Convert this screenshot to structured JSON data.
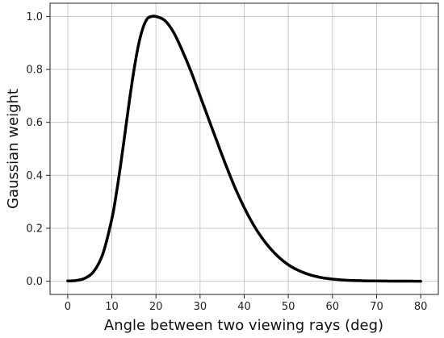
{
  "chart_data": {
    "type": "line",
    "xlabel": "Angle between two viewing rays (deg)",
    "ylabel": "Gaussian weight",
    "xlim": [
      -4,
      84
    ],
    "ylim": [
      -0.05,
      1.05
    ],
    "xticks": [
      0,
      10,
      20,
      30,
      40,
      50,
      60,
      70,
      80
    ],
    "xtick_labels": [
      "0",
      "10",
      "20",
      "30",
      "40",
      "50",
      "60",
      "70",
      "80"
    ],
    "yticks": [
      0.0,
      0.2,
      0.4,
      0.6,
      0.8,
      1.0
    ],
    "ytick_labels": [
      "0.0",
      "0.2",
      "0.4",
      "0.6",
      "0.8",
      "1.0"
    ],
    "grid": true,
    "series": [
      {
        "color": "#000000",
        "x": [
          0,
          2,
          4,
          6,
          8,
          10,
          11,
          12,
          13,
          14,
          15,
          16,
          17,
          18,
          19,
          20,
          22,
          24,
          26,
          28,
          30,
          32,
          34,
          36,
          38,
          40,
          42,
          44,
          46,
          48,
          50,
          52,
          54,
          56,
          58,
          60,
          62,
          64,
          66,
          68,
          70,
          72,
          74,
          76,
          78,
          80
        ],
        "y": [
          0.001,
          0.003,
          0.012,
          0.039,
          0.105,
          0.235,
          0.329,
          0.44,
          0.561,
          0.684,
          0.796,
          0.889,
          0.954,
          0.991,
          1.0,
          1.0,
          0.985,
          0.94,
          0.87,
          0.79,
          0.7,
          0.61,
          0.52,
          0.432,
          0.35,
          0.278,
          0.216,
          0.164,
          0.122,
          0.088,
          0.062,
          0.043,
          0.029,
          0.019,
          0.012,
          0.008,
          0.005,
          0.003,
          0.002,
          0.001,
          0.001,
          0.0005,
          0.0003,
          0.0002,
          0.0001,
          0.0
        ]
      }
    ]
  }
}
